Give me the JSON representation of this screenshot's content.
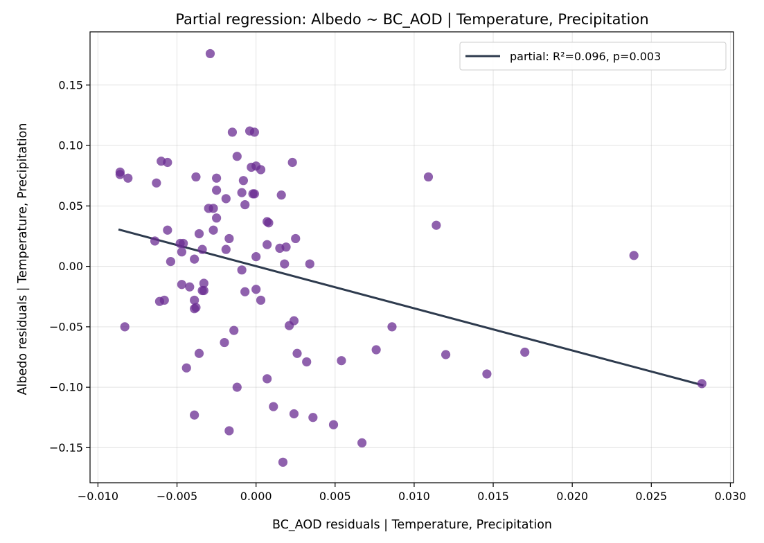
{
  "chart_data": {
    "type": "scatter",
    "title": "Partial regression: Albedo ~ BC_AOD | Temperature, Precipitation",
    "xlabel": "BC_AOD residuals | Temperature, Precipitation",
    "ylabel": "Albedo residuals | Temperature, Precipitation",
    "xlim": [
      -0.0105,
      0.0302
    ],
    "ylim": [
      -0.179,
      0.194
    ],
    "xticks": [
      -0.01,
      -0.005,
      0.0,
      0.005,
      0.01,
      0.015,
      0.02,
      0.025,
      0.03
    ],
    "xtick_labels": [
      "−0.010",
      "−0.005",
      "0.000",
      "0.005",
      "0.010",
      "0.015",
      "0.020",
      "0.025",
      "0.030"
    ],
    "yticks": [
      -0.15,
      -0.1,
      -0.05,
      0.0,
      0.05,
      0.1,
      0.15
    ],
    "ytick_labels": [
      "−0.15",
      "−0.10",
      "−0.05",
      "0.00",
      "0.05",
      "0.10",
      "0.15"
    ],
    "grid": true,
    "legend": {
      "placement": "top-right",
      "entries": [
        "partial: R²=0.096, p=0.003"
      ]
    },
    "series": [
      {
        "kind": "points",
        "color": "#6a2c91",
        "points": [
          [
            -0.0029,
            0.176
          ],
          [
            -0.0086,
            0.078
          ],
          [
            -0.0086,
            0.076
          ],
          [
            -0.0081,
            0.073
          ],
          [
            -0.006,
            0.087
          ],
          [
            -0.0056,
            0.086
          ],
          [
            -0.0063,
            0.069
          ],
          [
            -0.0038,
            0.074
          ],
          [
            -0.0015,
            0.111
          ],
          [
            -0.0004,
            0.112
          ],
          [
            -0.0001,
            0.111
          ],
          [
            -0.0012,
            0.091
          ],
          [
            -0.0003,
            0.082
          ],
          [
            0.0,
            0.083
          ],
          [
            0.0003,
            0.08
          ],
          [
            0.0023,
            0.086
          ],
          [
            -0.0025,
            0.073
          ],
          [
            -0.0008,
            0.071
          ],
          [
            -0.0025,
            0.063
          ],
          [
            -0.0009,
            0.061
          ],
          [
            -0.0002,
            0.06
          ],
          [
            -0.0001,
            0.06
          ],
          [
            -0.0019,
            0.056
          ],
          [
            -0.0007,
            0.051
          ],
          [
            -0.003,
            0.048
          ],
          [
            -0.0027,
            0.048
          ],
          [
            0.0016,
            0.059
          ],
          [
            -0.0025,
            0.04
          ],
          [
            0.0007,
            0.037
          ],
          [
            0.0008,
            0.036
          ],
          [
            -0.0056,
            0.03
          ],
          [
            -0.0027,
            0.03
          ],
          [
            -0.0036,
            0.027
          ],
          [
            -0.0064,
            0.021
          ],
          [
            -0.0048,
            0.019
          ],
          [
            -0.0046,
            0.019
          ],
          [
            -0.0017,
            0.023
          ],
          [
            0.0025,
            0.023
          ],
          [
            0.0007,
            0.018
          ],
          [
            0.0015,
            0.015
          ],
          [
            0.0019,
            0.016
          ],
          [
            -0.0034,
            0.014
          ],
          [
            -0.0019,
            0.014
          ],
          [
            -0.0047,
            0.012
          ],
          [
            -0.0039,
            0.006
          ],
          [
            0.0,
            0.008
          ],
          [
            -0.0054,
            0.004
          ],
          [
            0.0018,
            0.002
          ],
          [
            0.0034,
            0.002
          ],
          [
            -0.0009,
            -0.003
          ],
          [
            -0.0047,
            -0.015
          ],
          [
            -0.0033,
            -0.014
          ],
          [
            -0.0042,
            -0.017
          ],
          [
            -0.0034,
            -0.02
          ],
          [
            -0.0033,
            -0.02
          ],
          [
            -0.0007,
            -0.021
          ],
          [
            0.0,
            -0.019
          ],
          [
            -0.0061,
            -0.029
          ],
          [
            -0.0058,
            -0.028
          ],
          [
            -0.0039,
            -0.028
          ],
          [
            0.0003,
            -0.028
          ],
          [
            -0.0039,
            -0.035
          ],
          [
            -0.0038,
            -0.034
          ],
          [
            0.0024,
            -0.045
          ],
          [
            0.0021,
            -0.049
          ],
          [
            -0.0083,
            -0.05
          ],
          [
            0.0086,
            -0.05
          ],
          [
            -0.0014,
            -0.053
          ],
          [
            -0.002,
            -0.063
          ],
          [
            0.0026,
            -0.072
          ],
          [
            -0.0036,
            -0.072
          ],
          [
            0.0076,
            -0.069
          ],
          [
            0.0032,
            -0.079
          ],
          [
            0.0054,
            -0.078
          ],
          [
            -0.0044,
            -0.084
          ],
          [
            0.0007,
            -0.093
          ],
          [
            -0.0012,
            -0.1
          ],
          [
            0.0011,
            -0.116
          ],
          [
            0.0024,
            -0.122
          ],
          [
            -0.0039,
            -0.123
          ],
          [
            0.0036,
            -0.125
          ],
          [
            0.0049,
            -0.131
          ],
          [
            -0.0017,
            -0.136
          ],
          [
            0.0067,
            -0.146
          ],
          [
            0.0017,
            -0.162
          ],
          [
            0.0109,
            0.074
          ],
          [
            0.0114,
            0.034
          ],
          [
            0.012,
            -0.073
          ],
          [
            0.0146,
            -0.089
          ],
          [
            0.017,
            -0.071
          ],
          [
            0.0239,
            0.009
          ],
          [
            0.0282,
            -0.097
          ]
        ]
      },
      {
        "kind": "line",
        "name": "partial: R²=0.096, p=0.003",
        "color": "#2e3b4e",
        "points": [
          [
            -0.0087,
            0.0305
          ],
          [
            0.0283,
            -0.0985
          ]
        ]
      }
    ]
  }
}
